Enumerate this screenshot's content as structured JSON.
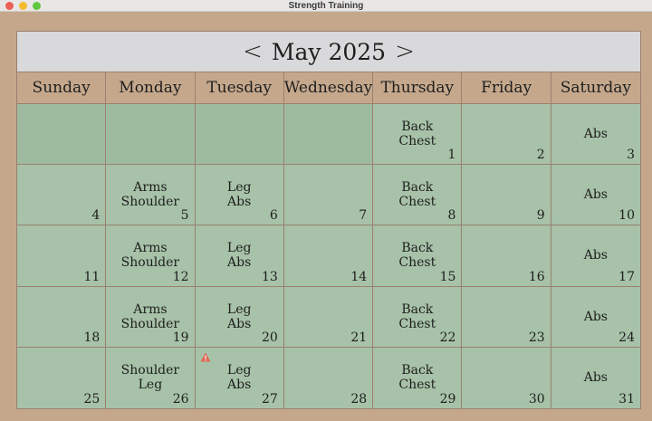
{
  "window": {
    "title": "Strength Training"
  },
  "header": {
    "prev": "<",
    "month": "May 2025",
    "next": ">"
  },
  "weekdays": [
    "Sunday",
    "Monday",
    "Tuesday",
    "Wednesday",
    "Thursday",
    "Friday",
    "Saturday"
  ],
  "colors": {
    "accent": "#c5a88c",
    "cell": "#a7c2a8",
    "warning": "#e06555"
  },
  "days": [
    {
      "day": "1",
      "workouts": [
        "Back",
        "Chest"
      ]
    },
    {
      "day": "2",
      "workouts": []
    },
    {
      "day": "3",
      "workouts": [
        "Abs"
      ]
    },
    {
      "day": "4",
      "workouts": []
    },
    {
      "day": "5",
      "workouts": [
        "Arms",
        "Shoulder"
      ]
    },
    {
      "day": "6",
      "workouts": [
        "Leg",
        "Abs"
      ]
    },
    {
      "day": "7",
      "workouts": []
    },
    {
      "day": "8",
      "workouts": [
        "Back",
        "Chest"
      ]
    },
    {
      "day": "9",
      "workouts": []
    },
    {
      "day": "10",
      "workouts": [
        "Abs"
      ]
    },
    {
      "day": "11",
      "workouts": []
    },
    {
      "day": "12",
      "workouts": [
        "Arms",
        "Shoulder"
      ]
    },
    {
      "day": "13",
      "workouts": [
        "Leg",
        "Abs"
      ]
    },
    {
      "day": "14",
      "workouts": []
    },
    {
      "day": "15",
      "workouts": [
        "Back",
        "Chest"
      ]
    },
    {
      "day": "16",
      "workouts": []
    },
    {
      "day": "17",
      "workouts": [
        "Abs"
      ]
    },
    {
      "day": "18",
      "workouts": []
    },
    {
      "day": "19",
      "workouts": [
        "Arms",
        "Shoulder"
      ]
    },
    {
      "day": "20",
      "workouts": [
        "Leg",
        "Abs"
      ]
    },
    {
      "day": "21",
      "workouts": []
    },
    {
      "day": "22",
      "workouts": [
        "Back",
        "Chest"
      ]
    },
    {
      "day": "23",
      "workouts": []
    },
    {
      "day": "24",
      "workouts": [
        "Abs"
      ]
    },
    {
      "day": "25",
      "workouts": []
    },
    {
      "day": "26",
      "workouts": [
        "Shoulder",
        "Leg"
      ]
    },
    {
      "day": "27",
      "workouts": [
        "Leg",
        "Abs"
      ],
      "warning": true,
      "warning_icon": "warning-triangle-icon"
    },
    {
      "day": "28",
      "workouts": []
    },
    {
      "day": "29",
      "workouts": [
        "Back",
        "Chest"
      ]
    },
    {
      "day": "30",
      "workouts": []
    },
    {
      "day": "31",
      "workouts": [
        "Abs"
      ]
    }
  ]
}
